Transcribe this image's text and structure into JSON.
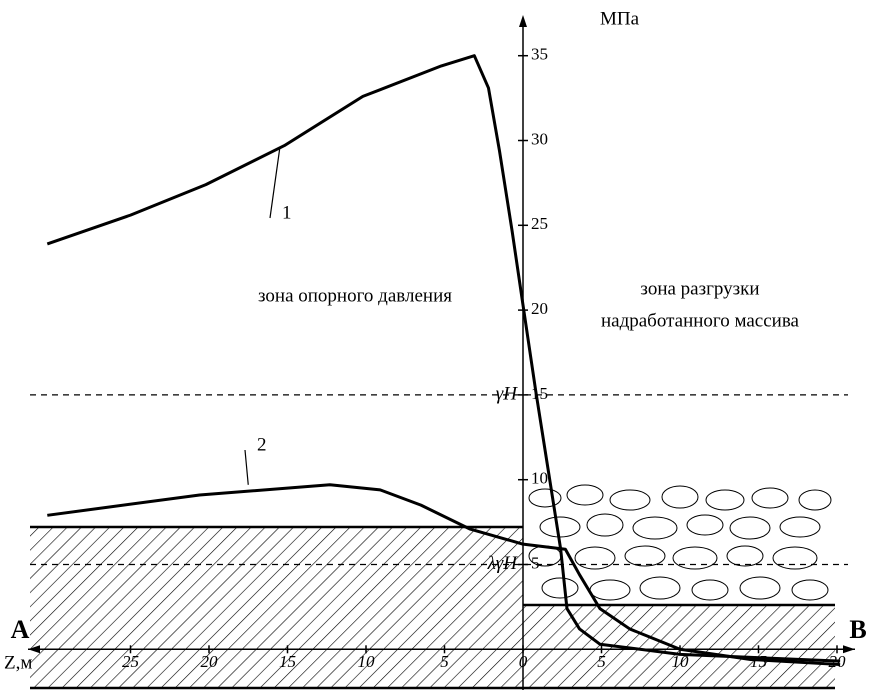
{
  "chart_data": {
    "type": "line",
    "y_axis_label": "МПа",
    "x_axis_label": "Z,м",
    "xlim": [
      -32,
      21
    ],
    "ylim": [
      -2.4,
      37.4
    ],
    "xticks": [
      {
        "value": -25,
        "label": "25"
      },
      {
        "value": -20,
        "label": "20"
      },
      {
        "value": -15,
        "label": "15"
      },
      {
        "value": -10,
        "label": "10"
      },
      {
        "value": -5,
        "label": "5"
      },
      0,
      5,
      10,
      15,
      20
    ],
    "yticks": [
      5,
      10,
      15,
      20,
      25,
      30,
      35
    ],
    "series": [
      {
        "name": "1",
        "color": "#000000",
        "x": [
          -30.3,
          -25,
          -20.2,
          -15.2,
          -10.2,
          -5.2,
          -3.1,
          -2.2,
          -1.5,
          -0.7,
          0,
          0.8,
          1.6,
          2.4,
          2.8,
          3.6,
          4.9,
          10,
          20.2
        ],
        "values": [
          23.9,
          25.6,
          27.4,
          29.7,
          32.6,
          34.4,
          35,
          33.1,
          29.4,
          24.7,
          20.3,
          15.3,
          10.6,
          5.9,
          2.4,
          1.2,
          0.3,
          -0.3,
          -0.7
        ]
      },
      {
        "name": "2",
        "color": "#000000",
        "x": [
          -30.3,
          -20.6,
          -12.3,
          -9.1,
          -6.5,
          -3.4,
          0,
          2.7,
          3.6,
          4.9,
          6.8,
          10,
          14.5,
          20.2
        ],
        "values": [
          7.9,
          9.1,
          9.7,
          9.4,
          8.5,
          7.1,
          6.2,
          5.9,
          4.4,
          2.4,
          1.2,
          0,
          -0.6,
          -0.9
        ]
      }
    ],
    "reference_lines": [
      {
        "value": 15,
        "label": "γH"
      },
      {
        "value": 5,
        "label": "λγH"
      }
    ],
    "annotations": [
      "зона опорного давления",
      "зона разгрузки",
      "надработанного массива",
      "A",
      "B"
    ]
  }
}
